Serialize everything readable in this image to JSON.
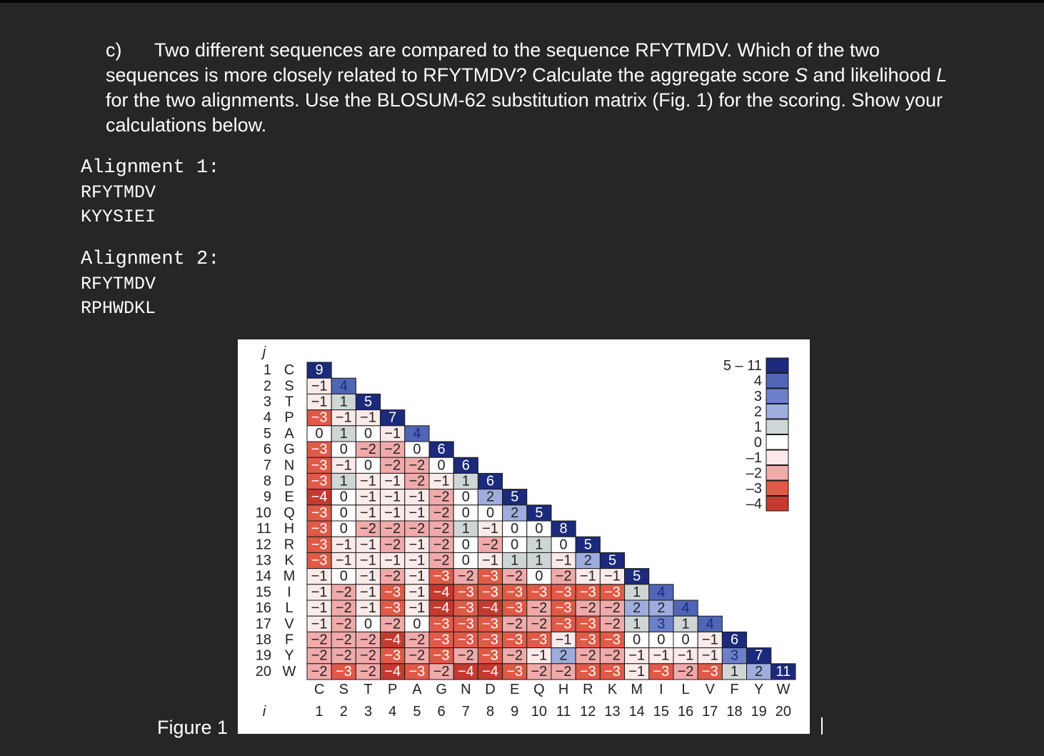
{
  "question": {
    "label": "c)",
    "text_1": "Two different sequences are compared to the sequence RFYTMDV. Which of the two sequences is more closely related to RFYTMDV? Calculate the aggregate score ",
    "var_S": "S",
    "text_2": " and likelihood ",
    "var_L": "L",
    "text_3": " for the two alignments. Use the BLOSUM-62 substitution matrix (Fig. 1) for the scoring. Show your calculations below."
  },
  "alignments": [
    {
      "title": "Alignment 1:",
      "seq1": "RFYTMDV",
      "seq2": "KYYSIEI"
    },
    {
      "title": "Alignment 2:",
      "seq1": "RFYTMDV",
      "seq2": "RPHWDKL"
    }
  ],
  "figure": {
    "label": "Figure 1",
    "j_label": "j",
    "i_label": "i",
    "amino_acids": [
      "C",
      "S",
      "T",
      "P",
      "A",
      "G",
      "N",
      "D",
      "E",
      "Q",
      "H",
      "R",
      "K",
      "M",
      "I",
      "L",
      "V",
      "F",
      "Y",
      "W"
    ],
    "indices": [
      "1",
      "2",
      "3",
      "4",
      "5",
      "6",
      "7",
      "8",
      "9",
      "10",
      "11",
      "12",
      "13",
      "14",
      "15",
      "16",
      "17",
      "18",
      "19",
      "20"
    ],
    "matrix": [
      [
        9
      ],
      [
        -1,
        4
      ],
      [
        -1,
        1,
        5
      ],
      [
        -3,
        -1,
        -1,
        7
      ],
      [
        0,
        1,
        0,
        -1,
        4
      ],
      [
        -3,
        0,
        -2,
        -2,
        0,
        6
      ],
      [
        -3,
        -1,
        0,
        -2,
        -2,
        0,
        6
      ],
      [
        -3,
        1,
        -1,
        -1,
        -2,
        -1,
        1,
        6
      ],
      [
        -4,
        0,
        -1,
        -1,
        -1,
        -2,
        0,
        2,
        5
      ],
      [
        -3,
        0,
        -1,
        -1,
        -1,
        -2,
        0,
        0,
        2,
        5
      ],
      [
        -3,
        0,
        -2,
        -2,
        -2,
        -2,
        1,
        -1,
        0,
        0,
        8
      ],
      [
        -3,
        -1,
        -1,
        -2,
        -1,
        -2,
        0,
        -2,
        0,
        1,
        0,
        5
      ],
      [
        -3,
        -1,
        -1,
        -1,
        -1,
        -2,
        0,
        -1,
        1,
        1,
        -1,
        2,
        5
      ],
      [
        -1,
        0,
        -1,
        -2,
        -1,
        -3,
        -2,
        -3,
        -2,
        0,
        -2,
        -1,
        -1,
        5
      ],
      [
        -1,
        -2,
        -1,
        -3,
        -1,
        -4,
        -3,
        -3,
        -3,
        -3,
        -3,
        -3,
        -3,
        1,
        4
      ],
      [
        -1,
        -2,
        -1,
        -3,
        -1,
        -4,
        -3,
        -4,
        -3,
        -2,
        -3,
        -2,
        -2,
        2,
        2,
        4
      ],
      [
        -1,
        -2,
        0,
        -2,
        0,
        -3,
        -3,
        -3,
        -2,
        -2,
        -3,
        -3,
        -2,
        1,
        3,
        1,
        4
      ],
      [
        -2,
        -2,
        -2,
        -4,
        -2,
        -3,
        -3,
        -3,
        -3,
        -3,
        -1,
        -3,
        -3,
        0,
        0,
        0,
        -1,
        6
      ],
      [
        -2,
        -2,
        -2,
        -3,
        -2,
        -3,
        -2,
        -3,
        -2,
        -1,
        2,
        -2,
        -2,
        -1,
        -1,
        -1,
        -1,
        3,
        7
      ],
      [
        -2,
        -3,
        -2,
        -4,
        -3,
        -2,
        -4,
        -4,
        -3,
        -2,
        -2,
        -3,
        -3,
        -1,
        -3,
        -2,
        -3,
        1,
        2,
        11
      ]
    ],
    "legend": [
      {
        "label": "5 – 11",
        "color": "#1c2a7c"
      },
      {
        "label": "4",
        "color": "#5065b5"
      },
      {
        "label": "3",
        "color": "#6b80c8"
      },
      {
        "label": "2",
        "color": "#9eaddd"
      },
      {
        "label": "1",
        "color": "#cfd6d6"
      },
      {
        "label": "0",
        "color": "#ffffff"
      },
      {
        "label": "–1",
        "color": "#fbeaea"
      },
      {
        "label": "–2",
        "color": "#f0aaaa"
      },
      {
        "label": "–3",
        "color": "#e05a48"
      },
      {
        "label": "–4",
        "color": "#c33a30"
      }
    ]
  }
}
